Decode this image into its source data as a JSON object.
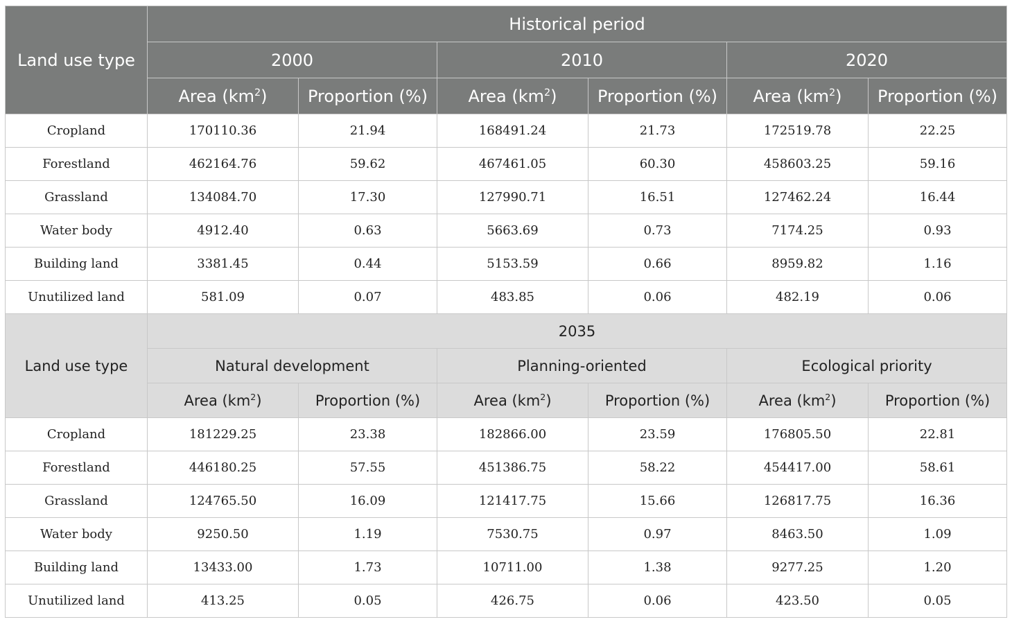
{
  "historical": {
    "label_col": "Land use type",
    "group_title": "Historical period",
    "years": [
      "2000",
      "2010",
      "2020"
    ],
    "area_label": "Area (km",
    "area_sup": "2",
    "area_close": ")",
    "prop_label": "Proportion (%)",
    "rows": [
      {
        "type": "Cropland",
        "v": [
          "170110.36",
          "21.94",
          "168491.24",
          "21.73",
          "172519.78",
          "22.25"
        ]
      },
      {
        "type": "Forestland",
        "v": [
          "462164.76",
          "59.62",
          "467461.05",
          "60.30",
          "458603.25",
          "59.16"
        ]
      },
      {
        "type": "Grassland",
        "v": [
          "134084.70",
          "17.30",
          "127990.71",
          "16.51",
          "127462.24",
          "16.44"
        ]
      },
      {
        "type": "Water body",
        "v": [
          "4912.40",
          "0.63",
          "5663.69",
          "0.73",
          "7174.25",
          "0.93"
        ]
      },
      {
        "type": "Building land",
        "v": [
          "3381.45",
          "0.44",
          "5153.59",
          "0.66",
          "8959.82",
          "1.16"
        ]
      },
      {
        "type": "Unutilized land",
        "v": [
          "581.09",
          "0.07",
          "483.85",
          "0.06",
          "482.19",
          "0.06"
        ]
      }
    ]
  },
  "future": {
    "label_col": "Land use type",
    "group_title": "2035",
    "scenarios": [
      "Natural development",
      "Planning-oriented",
      "Ecological priority"
    ],
    "area_label": "Area (km",
    "area_sup": "2",
    "area_close": ")",
    "prop_label": "Proportion (%)",
    "rows": [
      {
        "type": "Cropland",
        "v": [
          "181229.25",
          "23.38",
          "182866.00",
          "23.59",
          "176805.50",
          "22.81"
        ]
      },
      {
        "type": "Forestland",
        "v": [
          "446180.25",
          "57.55",
          "451386.75",
          "58.22",
          "454417.00",
          "58.61"
        ]
      },
      {
        "type": "Grassland",
        "v": [
          "124765.50",
          "16.09",
          "121417.75",
          "15.66",
          "126817.75",
          "16.36"
        ]
      },
      {
        "type": "Water body",
        "v": [
          "9250.50",
          "1.19",
          "7530.75",
          "0.97",
          "8463.50",
          "1.09"
        ]
      },
      {
        "type": "Building land",
        "v": [
          "13433.00",
          "1.73",
          "10711.00",
          "1.38",
          "9277.25",
          "1.20"
        ]
      },
      {
        "type": "Unutilized land",
        "v": [
          "413.25",
          "0.05",
          "426.75",
          "0.06",
          "423.50",
          "0.05"
        ]
      }
    ]
  }
}
